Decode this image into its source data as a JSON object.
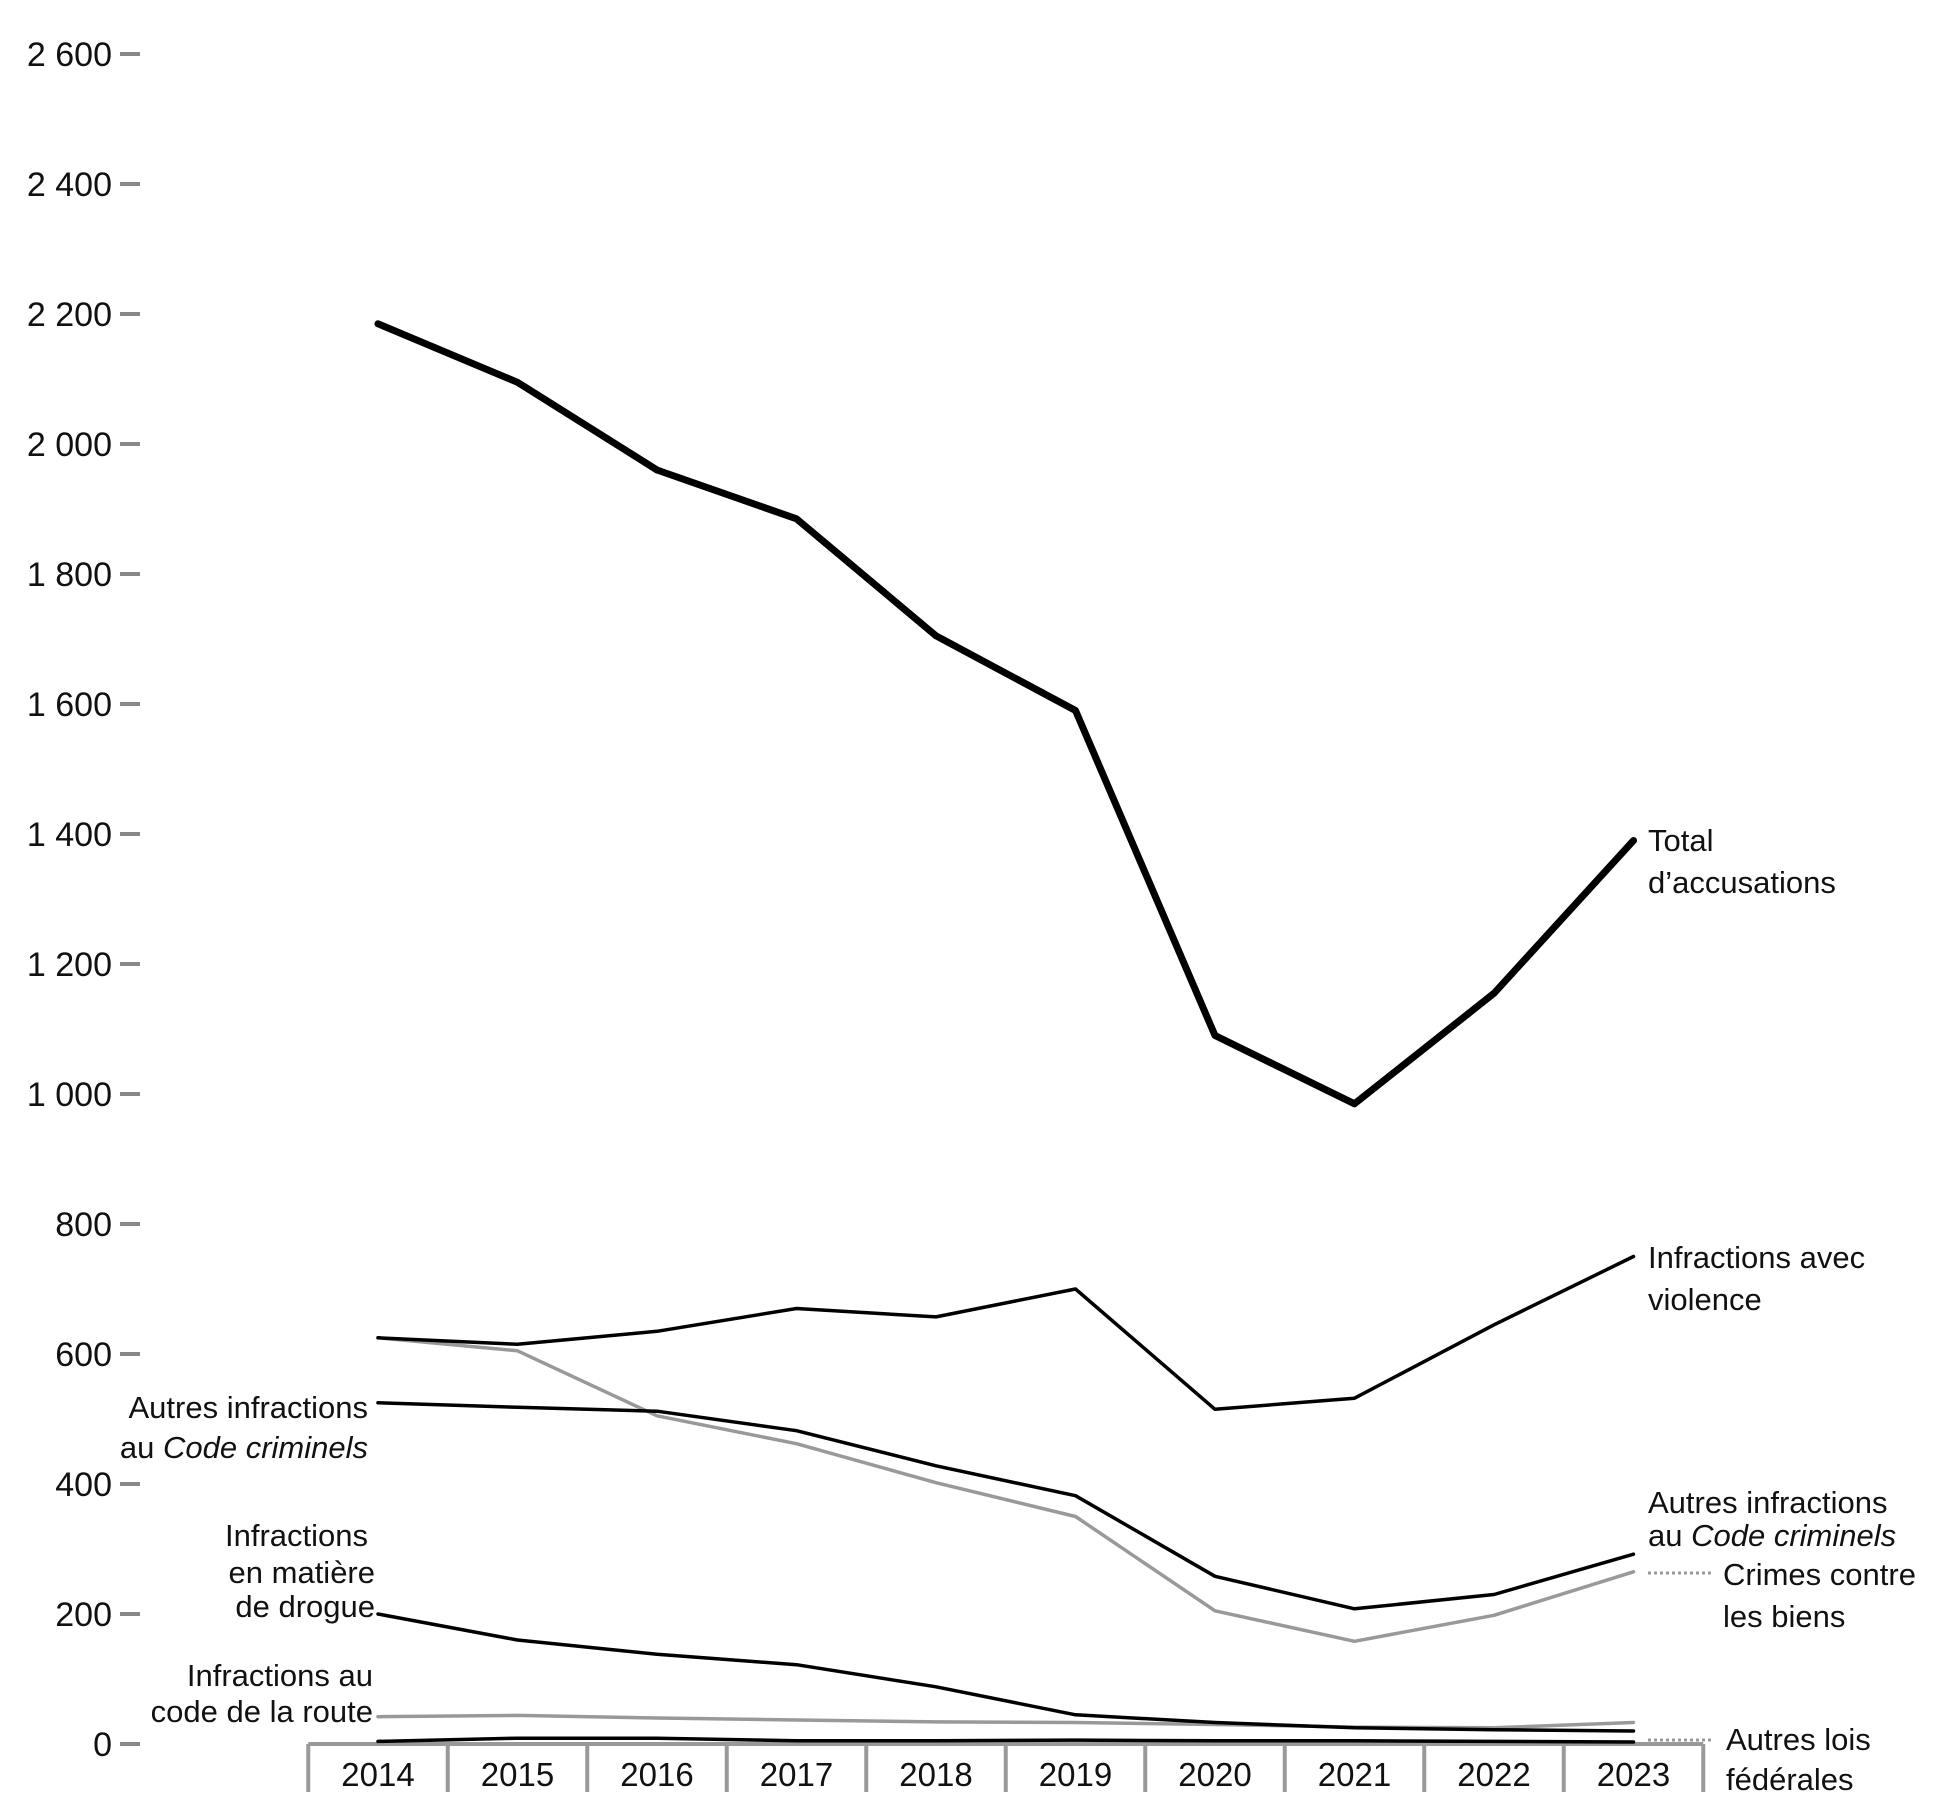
{
  "chart_data": {
    "type": "line",
    "title": "",
    "xlabel": "",
    "ylabel": "",
    "ylim": [
      0,
      2600
    ],
    "yticks": [
      0,
      200,
      400,
      600,
      800,
      1000,
      1200,
      1400,
      1600,
      1800,
      2000,
      2200,
      2400,
      2600
    ],
    "ytick_labels": [
      "0",
      "200",
      "400",
      "600",
      "800",
      "1 000",
      "1 200",
      "1 400",
      "1 600",
      "1 800",
      "2 000",
      "2 200",
      "2 400",
      "2 600"
    ],
    "categories": [
      "2014",
      "2015",
      "2016",
      "2017",
      "2018",
      "2019",
      "2020",
      "2021",
      "2022",
      "2023"
    ],
    "grid": false,
    "series": [
      {
        "id": "total",
        "name": "Total d’accusations",
        "color": "#000000",
        "style": "thick",
        "values": [
          2185,
          2095,
          1960,
          1885,
          1705,
          1590,
          1090,
          985,
          1155,
          1390
        ]
      },
      {
        "id": "violence",
        "name": "Infractions avec violence",
        "color": "#000000",
        "style": "solid",
        "values": [
          625,
          615,
          635,
          670,
          657,
          700,
          515,
          532,
          645,
          750
        ]
      },
      {
        "id": "other_cc",
        "name": "Autres infractions au Code criminels",
        "color": "#000000",
        "style": "solid",
        "values": [
          525,
          518,
          512,
          482,
          428,
          382,
          258,
          208,
          230,
          292
        ]
      },
      {
        "id": "property",
        "name": "Crimes contre les biens",
        "color": "#999999",
        "style": "solid",
        "values": [
          625,
          605,
          505,
          462,
          402,
          350,
          205,
          158,
          198,
          265
        ]
      },
      {
        "id": "drugs",
        "name": "Infractions en matière de drogue",
        "color": "#000000",
        "style": "solid",
        "values": [
          200,
          160,
          138,
          122,
          88,
          45,
          33,
          25,
          22,
          20
        ]
      },
      {
        "id": "traffic",
        "name": "Infractions au code de la route",
        "color": "#999999",
        "style": "solid",
        "values": [
          42,
          44,
          40,
          37,
          34,
          33,
          30,
          26,
          25,
          33
        ]
      },
      {
        "id": "federal",
        "name": "Autres lois fédérales",
        "color": "#000000",
        "style": "solid",
        "values": [
          4,
          9,
          9,
          5,
          5,
          6,
          5,
          5,
          4,
          3
        ]
      }
    ],
    "annotations": {
      "total_l1": "Total",
      "total_l2": "d’accusations",
      "violence_l1": "Infractions avec",
      "violence_l2": "violence",
      "othercc_left_l1": "Autres infractions",
      "othercc_left_l2_a": "au ",
      "othercc_left_l2_b": "Code criminels",
      "othercc_right_l1": "Autres infractions",
      "othercc_right_l2_a": "au ",
      "othercc_right_l2_b": "Code criminels",
      "property_l1": "Crimes contre",
      "property_l2": "les biens",
      "drugs_l1": "Infractions",
      "drugs_l2": "en matière",
      "drugs_l3": "de drogue",
      "traffic_l1": "Infractions au",
      "traffic_l2": "code de la route",
      "federal_l1": "Autres lois",
      "federal_l2": "fédérales"
    }
  }
}
